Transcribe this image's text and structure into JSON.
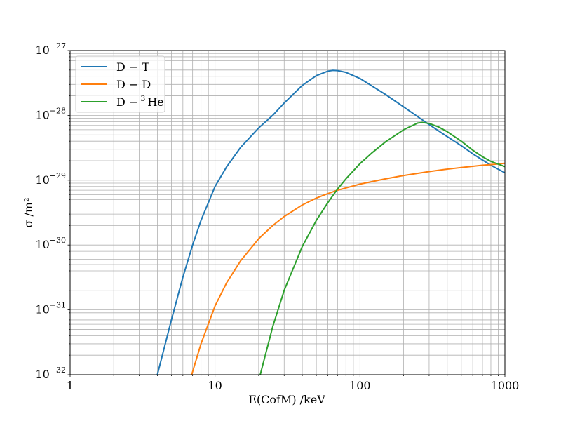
{
  "chart_data": {
    "type": "line",
    "xlabel": "E(CofM) /keV",
    "ylabel": "σ /m²",
    "x_scale": "log",
    "y_scale": "log",
    "xlim": [
      1,
      1000
    ],
    "ylim": [
      1e-32,
      1e-27
    ],
    "grid": "major and minor",
    "legend_position": "top-left",
    "x_ticks": [
      {
        "value": 1,
        "label": "1"
      },
      {
        "value": 10,
        "label": "10"
      },
      {
        "value": 100,
        "label": "100"
      },
      {
        "value": 1000,
        "label": "1000"
      }
    ],
    "y_ticks": [
      {
        "value": 1e-32,
        "base": "10",
        "exp": "−32"
      },
      {
        "value": 1e-31,
        "base": "10",
        "exp": "−31"
      },
      {
        "value": 1e-30,
        "base": "10",
        "exp": "−30"
      },
      {
        "value": 1e-29,
        "base": "10",
        "exp": "−29"
      },
      {
        "value": 1e-28,
        "base": "10",
        "exp": "−28"
      },
      {
        "value": 1e-27,
        "base": "10",
        "exp": "−27"
      }
    ],
    "series": [
      {
        "name": "D − T",
        "name_main": "D − T",
        "name_sup": "",
        "name_tail": "",
        "color": "#1f77b4",
        "points": [
          [
            4.0,
            1e-32
          ],
          [
            5,
            7e-32
          ],
          [
            6,
            3.2e-31
          ],
          [
            7,
            1e-30
          ],
          [
            8,
            2.4e-30
          ],
          [
            10,
            8e-30
          ],
          [
            12,
            1.6e-29
          ],
          [
            15,
            3.2e-29
          ],
          [
            20,
            6.4e-29
          ],
          [
            25,
            1e-28
          ],
          [
            30,
            1.55e-28
          ],
          [
            40,
            2.9e-28
          ],
          [
            50,
            4.1e-28
          ],
          [
            60,
            4.8e-28
          ],
          [
            65,
            4.95e-28
          ],
          [
            70,
            4.9e-28
          ],
          [
            80,
            4.6e-28
          ],
          [
            100,
            3.7e-28
          ],
          [
            150,
            2.1e-28
          ],
          [
            200,
            1.35e-28
          ],
          [
            300,
            7.2e-29
          ],
          [
            400,
            4.7e-29
          ],
          [
            500,
            3.4e-29
          ],
          [
            600,
            2.55e-29
          ],
          [
            700,
            2.05e-29
          ],
          [
            800,
            1.7e-29
          ],
          [
            1000,
            1.3e-29
          ]
        ]
      },
      {
        "name": "D − D",
        "name_main": "D − D",
        "name_sup": "",
        "name_tail": "",
        "color": "#ff7f0e",
        "points": [
          [
            6.9,
            1e-32
          ],
          [
            8,
            3e-32
          ],
          [
            10,
            1.15e-31
          ],
          [
            12,
            2.6e-31
          ],
          [
            15,
            5.7e-31
          ],
          [
            20,
            1.25e-30
          ],
          [
            25,
            2e-30
          ],
          [
            30,
            2.75e-30
          ],
          [
            40,
            4.15e-30
          ],
          [
            50,
            5.3e-30
          ],
          [
            60,
            6.2e-30
          ],
          [
            70,
            7e-30
          ],
          [
            80,
            7.6e-30
          ],
          [
            100,
            8.7e-30
          ],
          [
            150,
            1.05e-29
          ],
          [
            200,
            1.18e-29
          ],
          [
            300,
            1.36e-29
          ],
          [
            400,
            1.48e-29
          ],
          [
            500,
            1.57e-29
          ],
          [
            600,
            1.64e-29
          ],
          [
            700,
            1.7e-29
          ],
          [
            800,
            1.74e-29
          ],
          [
            1000,
            1.82e-29
          ]
        ]
      },
      {
        "name": "D −³He",
        "name_main": "D −",
        "name_sup": "3",
        "name_tail": "He",
        "color": "#2ca02c",
        "points": [
          [
            20.5,
            1e-32
          ],
          [
            25,
            5.5e-32
          ],
          [
            30,
            2e-31
          ],
          [
            40,
            9.5e-31
          ],
          [
            50,
            2.4e-30
          ],
          [
            60,
            4.5e-30
          ],
          [
            70,
            7.3e-30
          ],
          [
            80,
            1.05e-29
          ],
          [
            100,
            1.8e-29
          ],
          [
            120,
            2.6e-29
          ],
          [
            150,
            3.9e-29
          ],
          [
            200,
            6e-29
          ],
          [
            250,
            7.6e-29
          ],
          [
            270,
            7.75e-29
          ],
          [
            300,
            7.5e-29
          ],
          [
            350,
            6.6e-29
          ],
          [
            400,
            5.6e-29
          ],
          [
            500,
            4e-29
          ],
          [
            600,
            2.9e-29
          ],
          [
            700,
            2.3e-29
          ],
          [
            800,
            1.95e-29
          ],
          [
            1000,
            1.62e-29
          ]
        ]
      }
    ]
  }
}
